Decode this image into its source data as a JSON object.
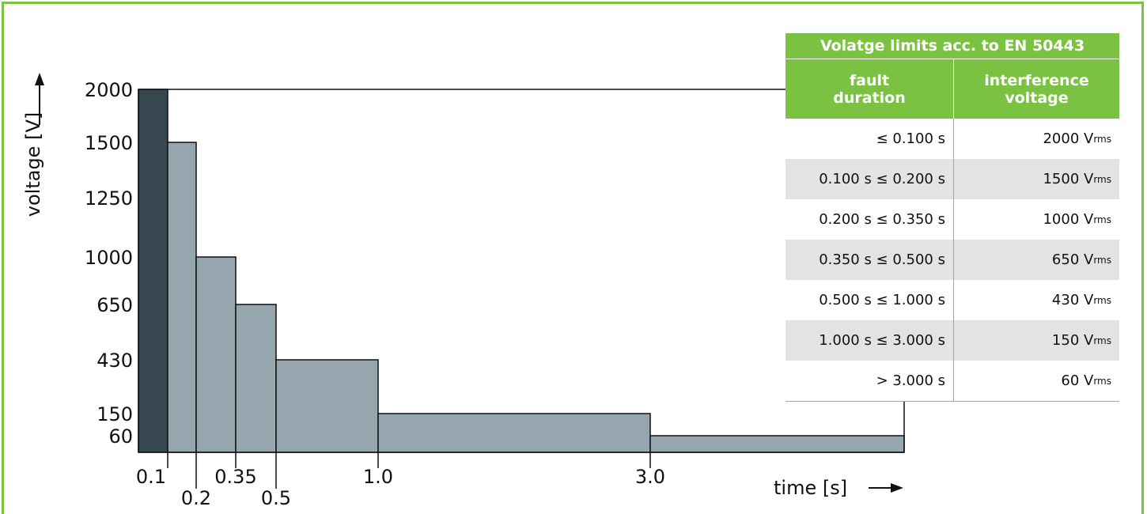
{
  "chart_data": {
    "type": "bar",
    "title": "",
    "xlabel": "time [s]",
    "ylabel": "voltage [V]",
    "y_scale": "categorical-steps",
    "y_ticks": [
      60,
      150,
      430,
      650,
      1000,
      1250,
      1500,
      2000
    ],
    "x_ticks": [
      "0.1",
      "0.2",
      "0.35",
      "0.5",
      "1.0",
      "3.0"
    ],
    "bars": [
      {
        "t_start": 0,
        "t_end": 0.1,
        "voltage": 2000,
        "color": "#37474f"
      },
      {
        "t_start": 0.1,
        "t_end": 0.2,
        "voltage": 1500,
        "color": "#95a6ae"
      },
      {
        "t_start": 0.2,
        "t_end": 0.35,
        "voltage": 1000,
        "color": "#95a6ae"
      },
      {
        "t_start": 0.35,
        "t_end": 0.5,
        "voltage": 650,
        "color": "#95a6ae"
      },
      {
        "t_start": 0.5,
        "t_end": 1.0,
        "voltage": 430,
        "color": "#95a6ae"
      },
      {
        "t_start": 1.0,
        "t_end": 3.0,
        "voltage": 150,
        "color": "#95a6ae"
      },
      {
        "t_start": 3.0,
        "t_end": null,
        "voltage": 60,
        "color": "#95a6ae"
      }
    ],
    "grid": false,
    "legend": "none"
  },
  "table": {
    "title": "Volatge limits acc. to EN 50443",
    "header_left": [
      "fault",
      "duration"
    ],
    "header_right": [
      "interference",
      "voltage"
    ],
    "unit_main": "V",
    "unit_sub": "rms",
    "rows": [
      {
        "duration": "≤ 0.100 s",
        "voltage": "2000"
      },
      {
        "duration": "0.100 s ≤ 0.200 s",
        "voltage": "1500"
      },
      {
        "duration": "0.200 s ≤ 0.350 s",
        "voltage": "1000"
      },
      {
        "duration": "0.350 s ≤ 0.500 s",
        "voltage": "650"
      },
      {
        "duration": "0.500 s ≤ 1.000 s",
        "voltage": "430"
      },
      {
        "duration": "1.000 s ≤ 3.000 s",
        "voltage": "150"
      },
      {
        "duration": "> 3.000 s",
        "voltage": "60"
      }
    ]
  },
  "colors": {
    "frame": "#7cc242",
    "header": "#7cc242",
    "bar_first": "#37474f",
    "bar_rest": "#95a6ae",
    "row_shade": "#e3e3e3"
  }
}
